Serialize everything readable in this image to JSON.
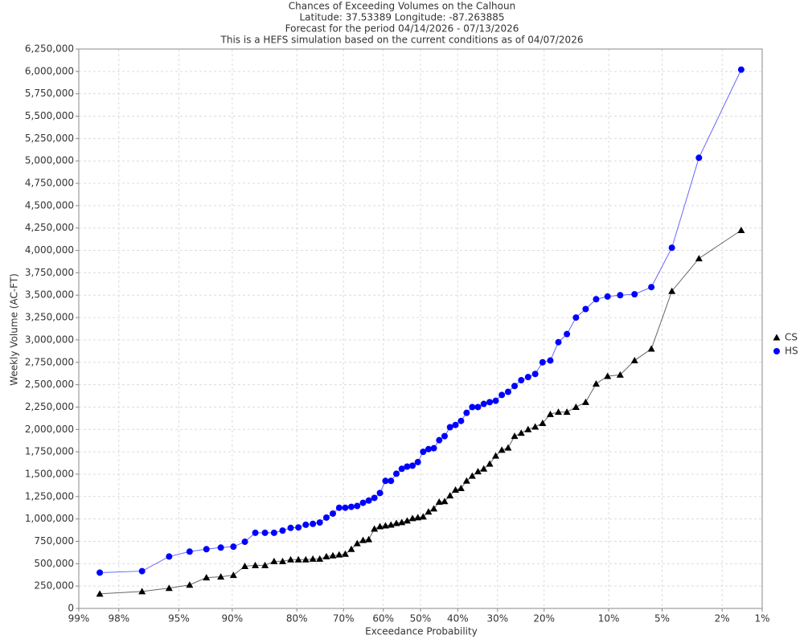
{
  "chart_data": {
    "type": "line",
    "title": "Chances of Exceeding Volumes on the Calhoun",
    "subtitle": [
      "Latitude: 37.53389 Longitude: -87.263885",
      "Forecast for the period 04/14/2026 - 07/13/2026",
      "This is a HEFS simulation based on the current conditions as of 04/07/2026"
    ],
    "xlabel": "Exceedance Probability",
    "ylabel": "Weekly Volume (AC-FT)",
    "xscale": "probability",
    "xlim": [
      99,
      1
    ],
    "xticks": [
      {
        "value": 99,
        "label": "99%"
      },
      {
        "value": 98,
        "label": "98%"
      },
      {
        "value": 95,
        "label": "95%"
      },
      {
        "value": 90,
        "label": "90%"
      },
      {
        "value": 80,
        "label": "80%"
      },
      {
        "value": 70,
        "label": "70%"
      },
      {
        "value": 60,
        "label": "60%"
      },
      {
        "value": 50,
        "label": "50%"
      },
      {
        "value": 40,
        "label": "40%"
      },
      {
        "value": 30,
        "label": "30%"
      },
      {
        "value": 20,
        "label": "20%"
      },
      {
        "value": 10,
        "label": "10%"
      },
      {
        "value": 5,
        "label": "5%"
      },
      {
        "value": 2,
        "label": "2%"
      },
      {
        "value": 1,
        "label": "1%"
      }
    ],
    "ylim": [
      0,
      6250000
    ],
    "yticks": [
      0,
      {
        "value": 250000,
        "label": "250,000"
      },
      {
        "value": 500000,
        "label": "500,000"
      },
      {
        "value": 750000,
        "label": "750,000"
      },
      {
        "value": 1000000,
        "label": "1,000,000"
      },
      {
        "value": 1250000,
        "label": "1,250,000"
      },
      {
        "value": 1500000,
        "label": "1,500,000"
      },
      {
        "value": 1750000,
        "label": "1,750,000"
      },
      {
        "value": 2000000,
        "label": "2,000,000"
      },
      {
        "value": 2250000,
        "label": "2,250,000"
      },
      {
        "value": 2500000,
        "label": "2,500,000"
      },
      {
        "value": 2750000,
        "label": "2,750,000"
      },
      {
        "value": 3000000,
        "label": "3,000,000"
      },
      {
        "value": 3250000,
        "label": "3,250,000"
      },
      {
        "value": 3500000,
        "label": "3,500,000"
      },
      {
        "value": 3750000,
        "label": "3,750,000"
      },
      {
        "value": 4000000,
        "label": "4,000,000"
      },
      {
        "value": 4250000,
        "label": "4,250,000"
      },
      {
        "value": 4500000,
        "label": "4,500,000"
      },
      {
        "value": 4750000,
        "label": "4,750,000"
      },
      {
        "value": 5000000,
        "label": "5,000,000"
      },
      {
        "value": 5250000,
        "label": "5,250,000"
      },
      {
        "value": 5500000,
        "label": "5,500,000"
      },
      {
        "value": 5750000,
        "label": "5,750,000"
      },
      {
        "value": 6000000,
        "label": "6,000,000"
      },
      {
        "value": 6250000,
        "label": "6,250,000"
      }
    ],
    "grid": true,
    "legend": "right",
    "x": [
      98.55,
      97.1,
      95.65,
      94.2,
      92.75,
      91.3,
      89.86,
      88.41,
      86.96,
      85.51,
      84.06,
      82.61,
      81.16,
      79.71,
      78.26,
      76.81,
      75.36,
      73.91,
      72.46,
      71.01,
      69.57,
      68.12,
      66.67,
      65.22,
      63.77,
      62.32,
      60.87,
      59.42,
      57.97,
      56.52,
      55.07,
      53.62,
      52.17,
      50.72,
      49.28,
      47.83,
      46.38,
      44.93,
      43.48,
      42.03,
      40.58,
      39.13,
      37.68,
      36.23,
      34.78,
      33.33,
      31.88,
      30.43,
      28.99,
      27.54,
      26.09,
      24.64,
      23.19,
      21.74,
      20.29,
      18.84,
      17.39,
      15.94,
      14.49,
      13.04,
      11.59,
      10.14,
      8.7,
      7.25,
      5.8,
      4.35,
      2.9,
      1.45
    ],
    "series": [
      {
        "name": "CS",
        "color": "#000000",
        "marker": "triangle",
        "values": [
          163000,
          190000,
          227000,
          263000,
          345000,
          354000,
          372000,
          472000,
          481000,
          481000,
          526000,
          526000,
          545000,
          545000,
          545000,
          553000,
          553000,
          580000,
          590000,
          600000,
          608000,
          662000,
          726000,
          762000,
          771000,
          889000,
          916000,
          925000,
          934000,
          952000,
          962000,
          980000,
          1007000,
          1016000,
          1025000,
          1080000,
          1115000,
          1190000,
          1197000,
          1260000,
          1325000,
          1343000,
          1425000,
          1480000,
          1530000,
          1560000,
          1615000,
          1705000,
          1770000,
          1795000,
          1925000,
          1960000,
          2000000,
          2030000,
          2070000,
          2170000,
          2195000,
          2195000,
          2250000,
          2305000,
          2510000,
          2595000,
          2610000,
          2770000,
          2900000,
          3545000,
          3910000,
          4225000
        ]
      },
      {
        "name": "HS",
        "color": "#0000ff",
        "marker": "circle",
        "values": [
          400000,
          417000,
          580000,
          635000,
          662000,
          680000,
          690000,
          745000,
          845000,
          845000,
          845000,
          870000,
          900000,
          905000,
          935000,
          945000,
          960000,
          1015000,
          1060000,
          1125000,
          1125000,
          1135000,
          1145000,
          1180000,
          1205000,
          1235000,
          1290000,
          1425000,
          1425000,
          1505000,
          1560000,
          1585000,
          1595000,
          1635000,
          1750000,
          1780000,
          1790000,
          1880000,
          1925000,
          2025000,
          2050000,
          2095000,
          2185000,
          2250000,
          2250000,
          2285000,
          2305000,
          2320000,
          2385000,
          2420000,
          2485000,
          2550000,
          2585000,
          2620000,
          2750000,
          2770000,
          2975000,
          3065000,
          3250000,
          3345000,
          3455000,
          3485000,
          3500000,
          3510000,
          3590000,
          4030000,
          5035000,
          6020000
        ]
      }
    ]
  }
}
